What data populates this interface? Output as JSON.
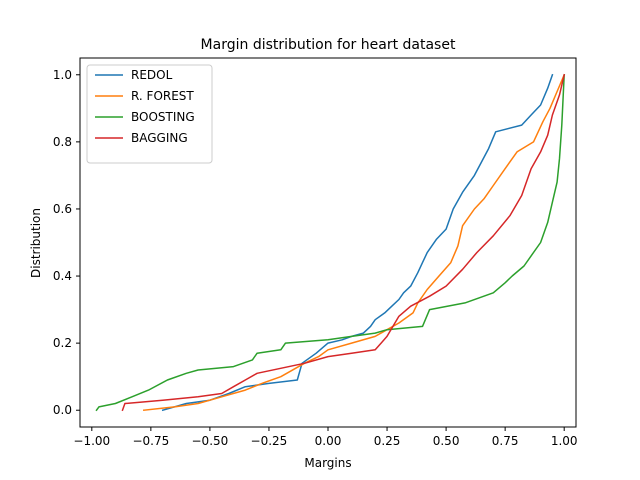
{
  "chart_data": {
    "type": "line",
    "title": "Margin distribution for heart dataset",
    "xlabel": "Margins",
    "ylabel": "Distribution",
    "xlim": [
      -1.05,
      1.05
    ],
    "ylim": [
      -0.05,
      1.05
    ],
    "xticks": [
      -1.0,
      -0.75,
      -0.5,
      -0.25,
      0.0,
      0.25,
      0.5,
      0.75,
      1.0
    ],
    "xtick_labels": [
      "−1.00",
      "−0.75",
      "−0.50",
      "−0.25",
      "0.00",
      "0.25",
      "0.50",
      "0.75",
      "1.00"
    ],
    "yticks": [
      0.0,
      0.2,
      0.4,
      0.6,
      0.8,
      1.0
    ],
    "ytick_labels": [
      "0.0",
      "0.2",
      "0.4",
      "0.6",
      "0.8",
      "1.0"
    ],
    "grid": false,
    "legend_position": "top-left",
    "series": [
      {
        "name": "REDOL",
        "color": "#1f77b4",
        "points": [
          [
            -0.7,
            0.0
          ],
          [
            -0.6,
            0.02
          ],
          [
            -0.5,
            0.03
          ],
          [
            -0.42,
            0.05
          ],
          [
            -0.35,
            0.07
          ],
          [
            -0.25,
            0.08
          ],
          [
            -0.13,
            0.09
          ],
          [
            -0.11,
            0.14
          ],
          [
            -0.05,
            0.17
          ],
          [
            0.0,
            0.2
          ],
          [
            0.06,
            0.21
          ],
          [
            0.1,
            0.22
          ],
          [
            0.15,
            0.23
          ],
          [
            0.18,
            0.25
          ],
          [
            0.2,
            0.27
          ],
          [
            0.24,
            0.29
          ],
          [
            0.27,
            0.31
          ],
          [
            0.3,
            0.33
          ],
          [
            0.32,
            0.35
          ],
          [
            0.35,
            0.37
          ],
          [
            0.38,
            0.41
          ],
          [
            0.4,
            0.44
          ],
          [
            0.42,
            0.47
          ],
          [
            0.46,
            0.51
          ],
          [
            0.5,
            0.54
          ],
          [
            0.53,
            0.6
          ],
          [
            0.57,
            0.65
          ],
          [
            0.62,
            0.7
          ],
          [
            0.65,
            0.74
          ],
          [
            0.68,
            0.78
          ],
          [
            0.71,
            0.83
          ],
          [
            0.82,
            0.85
          ],
          [
            0.86,
            0.88
          ],
          [
            0.9,
            0.91
          ],
          [
            0.93,
            0.96
          ],
          [
            0.95,
            1.0
          ]
        ]
      },
      {
        "name": "R. FOREST",
        "color": "#ff7f0e",
        "points": [
          [
            -0.78,
            0.0
          ],
          [
            -0.65,
            0.01
          ],
          [
            -0.55,
            0.02
          ],
          [
            -0.45,
            0.04
          ],
          [
            -0.35,
            0.06
          ],
          [
            -0.28,
            0.08
          ],
          [
            -0.2,
            0.1
          ],
          [
            -0.1,
            0.14
          ],
          [
            -0.04,
            0.16
          ],
          [
            0.0,
            0.18
          ],
          [
            0.1,
            0.2
          ],
          [
            0.2,
            0.22
          ],
          [
            0.25,
            0.24
          ],
          [
            0.3,
            0.26
          ],
          [
            0.36,
            0.29
          ],
          [
            0.38,
            0.32
          ],
          [
            0.42,
            0.36
          ],
          [
            0.47,
            0.4
          ],
          [
            0.52,
            0.44
          ],
          [
            0.55,
            0.49
          ],
          [
            0.57,
            0.55
          ],
          [
            0.62,
            0.6
          ],
          [
            0.66,
            0.63
          ],
          [
            0.7,
            0.67
          ],
          [
            0.75,
            0.72
          ],
          [
            0.8,
            0.77
          ],
          [
            0.87,
            0.8
          ],
          [
            0.91,
            0.86
          ],
          [
            0.94,
            0.9
          ],
          [
            0.97,
            0.95
          ],
          [
            1.0,
            1.0
          ]
        ]
      },
      {
        "name": "BOOSTING",
        "color": "#2ca02c",
        "points": [
          [
            -0.98,
            0.0
          ],
          [
            -0.97,
            0.01
          ],
          [
            -0.9,
            0.02
          ],
          [
            -0.83,
            0.04
          ],
          [
            -0.76,
            0.06
          ],
          [
            -0.68,
            0.09
          ],
          [
            -0.6,
            0.11
          ],
          [
            -0.55,
            0.12
          ],
          [
            -0.4,
            0.13
          ],
          [
            -0.32,
            0.15
          ],
          [
            -0.3,
            0.17
          ],
          [
            -0.2,
            0.18
          ],
          [
            -0.18,
            0.2
          ],
          [
            0.0,
            0.21
          ],
          [
            0.1,
            0.22
          ],
          [
            0.2,
            0.23
          ],
          [
            0.25,
            0.24
          ],
          [
            0.4,
            0.25
          ],
          [
            0.43,
            0.3
          ],
          [
            0.58,
            0.32
          ],
          [
            0.7,
            0.35
          ],
          [
            0.75,
            0.38
          ],
          [
            0.78,
            0.4
          ],
          [
            0.83,
            0.43
          ],
          [
            0.86,
            0.46
          ],
          [
            0.9,
            0.5
          ],
          [
            0.93,
            0.56
          ],
          [
            0.95,
            0.62
          ],
          [
            0.97,
            0.68
          ],
          [
            0.98,
            0.75
          ],
          [
            0.99,
            0.85
          ],
          [
            1.0,
            1.0
          ]
        ]
      },
      {
        "name": "BAGGING",
        "color": "#d62728",
        "points": [
          [
            -0.87,
            0.0
          ],
          [
            -0.86,
            0.02
          ],
          [
            -0.7,
            0.03
          ],
          [
            -0.55,
            0.04
          ],
          [
            -0.45,
            0.05
          ],
          [
            -0.4,
            0.07
          ],
          [
            -0.35,
            0.09
          ],
          [
            -0.3,
            0.11
          ],
          [
            -0.1,
            0.14
          ],
          [
            0.0,
            0.16
          ],
          [
            0.1,
            0.17
          ],
          [
            0.2,
            0.18
          ],
          [
            0.25,
            0.22
          ],
          [
            0.3,
            0.28
          ],
          [
            0.35,
            0.31
          ],
          [
            0.43,
            0.34
          ],
          [
            0.5,
            0.37
          ],
          [
            0.57,
            0.42
          ],
          [
            0.63,
            0.47
          ],
          [
            0.7,
            0.52
          ],
          [
            0.77,
            0.58
          ],
          [
            0.82,
            0.64
          ],
          [
            0.86,
            0.72
          ],
          [
            0.9,
            0.77
          ],
          [
            0.93,
            0.82
          ],
          [
            0.95,
            0.88
          ],
          [
            0.98,
            0.94
          ],
          [
            1.0,
            1.0
          ]
        ]
      }
    ]
  }
}
